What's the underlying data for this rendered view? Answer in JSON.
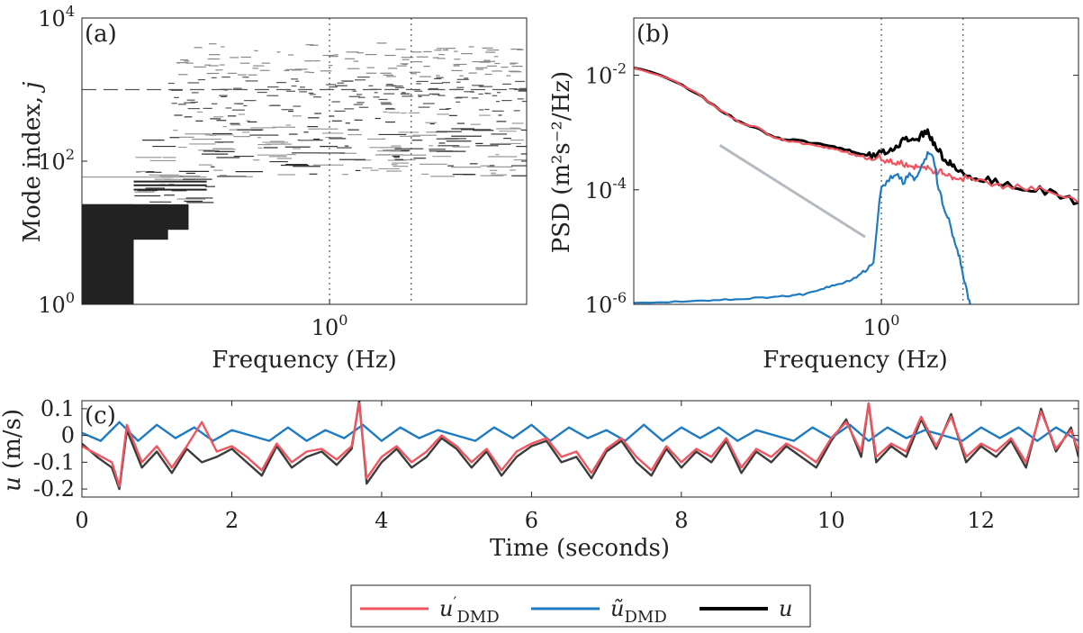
{
  "colors": {
    "dmd_prime": "#f0555f",
    "dmd_tilde": "#1f7bc1",
    "u": "#000000",
    "u_timeseries": "#3c3c3c",
    "reference_line": "#b4bac0",
    "mode_bars": "#222222",
    "guide_lines": "#555555"
  },
  "chart_data": [
    {
      "panel": "(a)",
      "type": "scatter",
      "xlabel": "Frequency (Hz)",
      "ylabel": "Mode index, j",
      "xscale": "log",
      "yscale": "log",
      "xlim": [
        0.2,
        3.6
      ],
      "ylim": [
        1,
        10000
      ],
      "xticks": [
        {
          "value": 1,
          "label": "10^0"
        }
      ],
      "yticks": [
        {
          "value": 1,
          "label": "10^0"
        },
        {
          "value": 100,
          "label": "10^2"
        },
        {
          "value": 10000,
          "label": "10^4"
        }
      ],
      "ref_lines": {
        "horizontal_dashed": 1000,
        "horizontal_solid": 60,
        "vertical_dotted": [
          1.0,
          1.7
        ]
      },
      "mode_blocks": [
        {
          "f_to": 0.28,
          "j_from": 1,
          "j_to": 25
        },
        {
          "f_to": 0.35,
          "j_from": 8,
          "j_to": 25
        },
        {
          "f_to": 0.4,
          "j_from": 11,
          "j_to": 25
        }
      ],
      "grid": false
    },
    {
      "panel": "(b)",
      "type": "line",
      "xlabel": "Frequency (Hz)",
      "ylabel": "PSD (m²s⁻²/Hz)",
      "xscale": "log",
      "yscale": "log",
      "xlim": [
        0.2,
        3.6
      ],
      "ylim": [
        1e-06,
        0.1
      ],
      "xticks": [
        {
          "value": 1,
          "label": "10^0"
        }
      ],
      "yticks": [
        {
          "value": 1e-06,
          "label": "10^-6"
        },
        {
          "value": 0.0001,
          "label": "10^-4"
        },
        {
          "value": 0.01,
          "label": "10^-2"
        }
      ],
      "vertical_dotted": [
        1.0,
        1.7
      ],
      "reference_slope": {
        "from": [
          0.35,
          0.0006
        ],
        "to": [
          0.9,
          1.5e-05
        ]
      },
      "series": [
        {
          "key": "u",
          "x": [
            0.2,
            0.25,
            0.3,
            0.35,
            0.4,
            0.45,
            0.5,
            0.55,
            0.6,
            0.65,
            0.7,
            0.75,
            0.8,
            0.85,
            0.9,
            0.95,
            1.0,
            1.05,
            1.1,
            1.15,
            1.2,
            1.25,
            1.3,
            1.35,
            1.4,
            1.45,
            1.5,
            1.55,
            1.6,
            1.7,
            1.8,
            2.0,
            2.2,
            2.5,
            2.8,
            3.2,
            3.6
          ],
          "y": [
            0.014,
            0.009,
            0.005,
            0.0025,
            0.0015,
            0.0012,
            0.0008,
            0.00075,
            0.0007,
            0.00065,
            0.0006,
            0.00055,
            0.0005,
            0.00045,
            0.0004,
            0.0004,
            0.00045,
            0.0005,
            0.0006,
            0.0007,
            0.0008,
            0.00075,
            0.0009,
            0.001,
            0.0007,
            0.0005,
            0.00035,
            0.0003,
            0.00025,
            0.0002,
            0.00017,
            0.00015,
            0.00013,
            0.00011,
            0.0001,
            8e-05,
            6e-05
          ]
        },
        {
          "key": "dmd_prime",
          "x": [
            0.2,
            0.25,
            0.3,
            0.35,
            0.4,
            0.45,
            0.5,
            0.55,
            0.6,
            0.65,
            0.7,
            0.75,
            0.8,
            0.85,
            0.9,
            0.95,
            1.0,
            1.05,
            1.1,
            1.15,
            1.2,
            1.25,
            1.3,
            1.35,
            1.4,
            1.45,
            1.5,
            1.55,
            1.6,
            1.7,
            1.8,
            2.0,
            2.2,
            2.5,
            2.8,
            3.2,
            3.6
          ],
          "y": [
            0.014,
            0.009,
            0.005,
            0.0025,
            0.0015,
            0.0012,
            0.0008,
            0.0007,
            0.00065,
            0.0006,
            0.00055,
            0.0005,
            0.00045,
            0.0004,
            0.00038,
            0.00037,
            0.00035,
            0.00032,
            0.0003,
            0.00028,
            0.00027,
            0.00025,
            0.00024,
            0.00023,
            0.00021,
            0.0002,
            0.0002,
            0.00018,
            0.00017,
            0.00016,
            0.00015,
            0.00013,
            0.00012,
            0.00011,
            0.0001,
            8e-05,
            6e-05
          ]
        },
        {
          "key": "dmd_tilde",
          "x": [
            0.2,
            0.25,
            0.3,
            0.35,
            0.4,
            0.45,
            0.5,
            0.55,
            0.6,
            0.65,
            0.7,
            0.75,
            0.8,
            0.85,
            0.9,
            0.95,
            1.0,
            1.05,
            1.1,
            1.15,
            1.2,
            1.25,
            1.3,
            1.35,
            1.4,
            1.45,
            1.5,
            1.55,
            1.6,
            1.65,
            1.7,
            1.75,
            1.78
          ],
          "y": [
            1.1e-06,
            1.1e-06,
            1.15e-06,
            1.2e-06,
            1.25e-06,
            1.3e-06,
            1.35e-06,
            1.4e-06,
            1.5e-06,
            1.7e-06,
            2e-06,
            2.2e-06,
            2.5e-06,
            3e-06,
            4e-06,
            6e-06,
            0.00012,
            0.00015,
            0.0002,
            0.00013,
            0.0002,
            0.00015,
            0.00025,
            0.0004,
            0.0004,
            0.0001,
            5e-05,
            3e-05,
            1.5e-05,
            8e-06,
            3e-06,
            1.5e-06,
            1e-06
          ]
        }
      ],
      "grid": false
    },
    {
      "panel": "(c)",
      "type": "line",
      "xlabel": "Time (seconds)",
      "ylabel": "u (m/s)",
      "xlim": [
        0,
        13.3
      ],
      "ylim": [
        -0.23,
        0.13
      ],
      "xticks": [
        0,
        2,
        4,
        6,
        8,
        10,
        12
      ],
      "yticks": [
        {
          "value": 0.1,
          "label": "0.1"
        },
        {
          "value": 0,
          "label": "0"
        },
        {
          "value": -0.1,
          "label": "-0.1"
        },
        {
          "value": -0.2,
          "label": "-0.2"
        }
      ],
      "series": [
        {
          "key": "u",
          "x": [
            0,
            0.2,
            0.4,
            0.5,
            0.6,
            0.8,
            1.0,
            1.2,
            1.4,
            1.6,
            1.8,
            2.0,
            2.2,
            2.4,
            2.6,
            2.8,
            3.0,
            3.2,
            3.4,
            3.6,
            3.7,
            3.8,
            4.0,
            4.2,
            4.4,
            4.6,
            4.8,
            5.0,
            5.2,
            5.4,
            5.6,
            5.8,
            6.0,
            6.2,
            6.4,
            6.6,
            6.8,
            7.0,
            7.2,
            7.4,
            7.6,
            7.8,
            8.0,
            8.2,
            8.4,
            8.6,
            8.8,
            9.0,
            9.2,
            9.4,
            9.6,
            9.8,
            10.0,
            10.2,
            10.4,
            10.5,
            10.6,
            10.8,
            11.0,
            11.2,
            11.4,
            11.6,
            11.8,
            12.0,
            12.2,
            12.4,
            12.6,
            12.8,
            13.0,
            13.2,
            13.3
          ],
          "y": [
            -0.03,
            -0.08,
            -0.12,
            -0.2,
            0.02,
            -0.12,
            -0.06,
            -0.14,
            -0.05,
            -0.1,
            -0.08,
            -0.05,
            -0.1,
            -0.15,
            -0.04,
            -0.12,
            -0.08,
            -0.06,
            -0.11,
            -0.05,
            0.13,
            -0.18,
            -0.1,
            -0.05,
            -0.12,
            -0.08,
            -0.01,
            -0.05,
            -0.12,
            -0.06,
            -0.15,
            -0.08,
            -0.04,
            -0.02,
            -0.1,
            -0.08,
            -0.16,
            -0.06,
            -0.02,
            -0.1,
            -0.15,
            -0.05,
            -0.12,
            -0.06,
            -0.1,
            -0.02,
            -0.14,
            -0.06,
            -0.1,
            -0.04,
            -0.08,
            -0.12,
            -0.02,
            0.06,
            -0.08,
            0.12,
            -0.1,
            -0.04,
            -0.08,
            0.06,
            -0.05,
            0.08,
            -0.1,
            -0.04,
            -0.08,
            -0.02,
            -0.12,
            0.1,
            -0.06,
            0.03,
            -0.08
          ]
        },
        {
          "key": "dmd_prime",
          "x": [
            0,
            0.2,
            0.4,
            0.5,
            0.6,
            0.8,
            1.0,
            1.2,
            1.4,
            1.6,
            1.8,
            2.0,
            2.2,
            2.4,
            2.6,
            2.8,
            3.0,
            3.2,
            3.4,
            3.6,
            3.7,
            3.8,
            4.0,
            4.2,
            4.4,
            4.6,
            4.8,
            5.0,
            5.2,
            5.4,
            5.6,
            5.8,
            6.0,
            6.2,
            6.4,
            6.6,
            6.8,
            7.0,
            7.2,
            7.4,
            7.6,
            7.8,
            8.0,
            8.2,
            8.4,
            8.6,
            8.8,
            9.0,
            9.2,
            9.4,
            9.6,
            9.8,
            10.0,
            10.2,
            10.4,
            10.5,
            10.6,
            10.8,
            11.0,
            11.2,
            11.4,
            11.6,
            11.8,
            12.0,
            12.2,
            12.4,
            12.6,
            12.8,
            13.0,
            13.2,
            13.3
          ],
          "y": [
            -0.04,
            -0.07,
            -0.1,
            -0.19,
            0.04,
            -0.1,
            -0.04,
            -0.12,
            -0.04,
            0.05,
            -0.06,
            -0.04,
            -0.08,
            -0.13,
            -0.03,
            -0.1,
            -0.06,
            -0.05,
            -0.09,
            -0.04,
            0.12,
            -0.16,
            -0.08,
            -0.04,
            -0.1,
            -0.06,
            0.0,
            -0.04,
            -0.1,
            -0.05,
            -0.13,
            -0.06,
            -0.03,
            -0.01,
            -0.08,
            -0.06,
            -0.14,
            -0.05,
            -0.01,
            -0.08,
            -0.13,
            -0.04,
            -0.1,
            -0.05,
            -0.08,
            -0.01,
            -0.12,
            -0.05,
            -0.08,
            -0.03,
            -0.06,
            -0.1,
            -0.01,
            0.05,
            -0.06,
            0.12,
            -0.08,
            -0.03,
            -0.06,
            0.07,
            -0.04,
            0.07,
            -0.08,
            -0.03,
            -0.06,
            -0.01,
            -0.1,
            0.09,
            -0.05,
            0.02,
            -0.06
          ]
        },
        {
          "key": "dmd_tilde",
          "x": [
            0,
            0.25,
            0.5,
            0.75,
            1.0,
            1.25,
            1.5,
            1.75,
            2.0,
            2.25,
            2.5,
            2.75,
            3.0,
            3.25,
            3.5,
            3.75,
            4.0,
            4.25,
            4.5,
            4.75,
            5.0,
            5.25,
            5.5,
            5.75,
            6.0,
            6.25,
            6.5,
            6.75,
            7.0,
            7.25,
            7.5,
            7.75,
            8.0,
            8.25,
            8.5,
            8.75,
            9.0,
            9.25,
            9.5,
            9.75,
            10.0,
            10.25,
            10.5,
            10.75,
            11.0,
            11.25,
            11.5,
            11.75,
            12.0,
            12.25,
            12.5,
            12.75,
            13.0,
            13.3
          ],
          "y": [
            0.01,
            -0.02,
            0.05,
            -0.02,
            0.04,
            -0.01,
            0.03,
            -0.02,
            0.02,
            0.0,
            -0.02,
            0.03,
            -0.02,
            0.02,
            -0.01,
            0.04,
            -0.02,
            0.03,
            -0.01,
            0.02,
            0.0,
            -0.02,
            0.03,
            -0.01,
            0.04,
            -0.02,
            0.03,
            -0.01,
            0.02,
            -0.02,
            0.04,
            -0.02,
            0.03,
            -0.01,
            0.03,
            -0.02,
            0.02,
            0.0,
            -0.02,
            0.03,
            -0.01,
            0.04,
            -0.02,
            0.03,
            -0.01,
            0.02,
            0.0,
            -0.02,
            0.03,
            -0.01,
            0.03,
            -0.02,
            0.03,
            -0.02
          ]
        }
      ],
      "grid": false
    }
  ],
  "legend": {
    "placement": "bottom-center",
    "entries": [
      {
        "key": "dmd_prime",
        "label_base": "u",
        "label_sup": "′",
        "label_sub": "DMD"
      },
      {
        "key": "dmd_tilde",
        "label_base": "ũ",
        "label_sup": "",
        "label_sub": "DMD"
      },
      {
        "key": "u",
        "label_base": "u",
        "label_sup": "",
        "label_sub": ""
      }
    ]
  }
}
